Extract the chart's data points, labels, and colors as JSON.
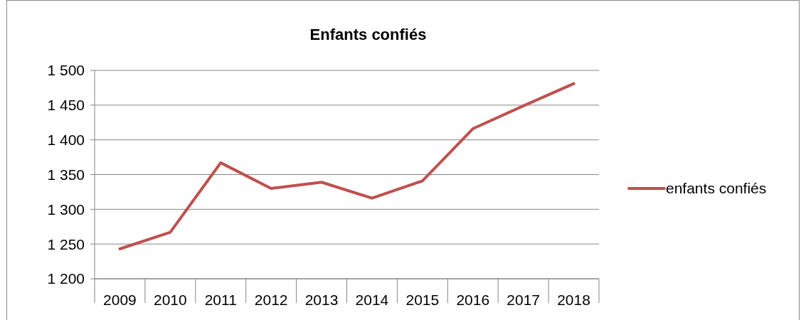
{
  "chart_data": {
    "type": "line",
    "title": "Enfants confiés",
    "categories": [
      "2009",
      "2010",
      "2011",
      "2012",
      "2013",
      "2014",
      "2015",
      "2016",
      "2017",
      "2018"
    ],
    "series": [
      {
        "name": "enfants confiés",
        "color": "#c0504d",
        "values": [
          1243,
          1267,
          1367,
          1330,
          1339,
          1316,
          1341,
          1416,
          1449,
          1481
        ]
      }
    ],
    "ylim": [
      1200,
      1500
    ],
    "yticks": [
      {
        "value": 1200,
        "label": "1 200"
      },
      {
        "value": 1250,
        "label": "1 250"
      },
      {
        "value": 1300,
        "label": "1 300"
      },
      {
        "value": 1350,
        "label": "1 350"
      },
      {
        "value": 1400,
        "label": "1 400"
      },
      {
        "value": 1450,
        "label": "1 450"
      },
      {
        "value": 1500,
        "label": "1 500"
      }
    ],
    "grid": "y",
    "legend": "right",
    "marker": "none",
    "line_style": "solid"
  }
}
